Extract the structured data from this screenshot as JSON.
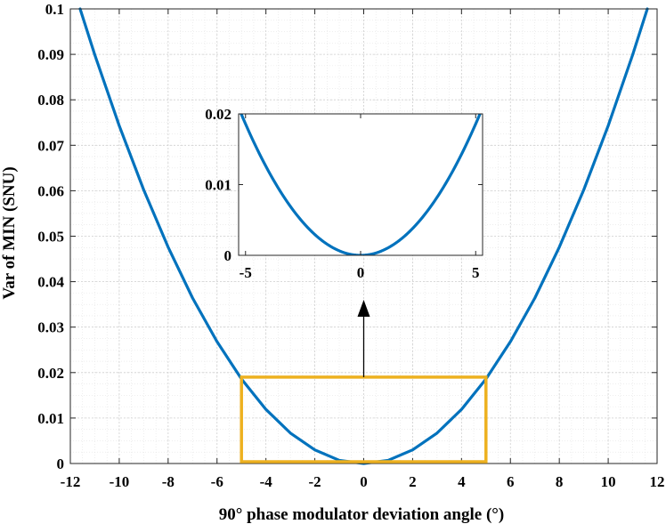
{
  "chart_data": {
    "type": "line",
    "title": "",
    "xlabel": "90° phase modulator deviation angle (°)",
    "ylabel": "Var of MIN (SNU)",
    "xlim": [
      -12,
      12
    ],
    "ylim": [
      0,
      0.1
    ],
    "x_ticks": [
      "-12",
      "-10",
      "-8",
      "-6",
      "-4",
      "-2",
      "0",
      "2",
      "4",
      "6",
      "8",
      "10",
      "12"
    ],
    "y_ticks": [
      "0",
      "0.01",
      "0.02",
      "0.03",
      "0.04",
      "0.05",
      "0.06",
      "0.07",
      "0.08",
      "0.09",
      "0.1"
    ],
    "grid": "on (major and minor, dotted)",
    "series": [
      {
        "color": "#0072BD",
        "x": [
          -11.6,
          -11,
          -10,
          -9,
          -8,
          -7,
          -6,
          -5,
          -4,
          -3,
          -2,
          -1,
          0,
          1,
          2,
          3,
          4,
          5,
          6,
          7,
          8,
          9,
          10,
          11,
          11.6
        ],
        "y": [
          0.1,
          0.0899,
          0.0743,
          0.0602,
          0.0476,
          0.0364,
          0.0268,
          0.0186,
          0.0119,
          0.0067,
          0.003,
          0.0007,
          0,
          0.0007,
          0.003,
          0.0067,
          0.0119,
          0.0186,
          0.0268,
          0.0364,
          0.0476,
          0.0602,
          0.0743,
          0.0899,
          0.1
        ]
      }
    ],
    "highlight_box": {
      "x": [
        -5,
        5
      ],
      "y": [
        0,
        0.019
      ],
      "color": "#EDB120"
    },
    "inset": {
      "xlim": [
        -5.3,
        5.3
      ],
      "ylim": [
        0,
        0.02
      ],
      "x_ticks": [
        "-5",
        "0",
        "5"
      ],
      "y_ticks": [
        "0",
        "0.01",
        "0.02"
      ]
    }
  }
}
